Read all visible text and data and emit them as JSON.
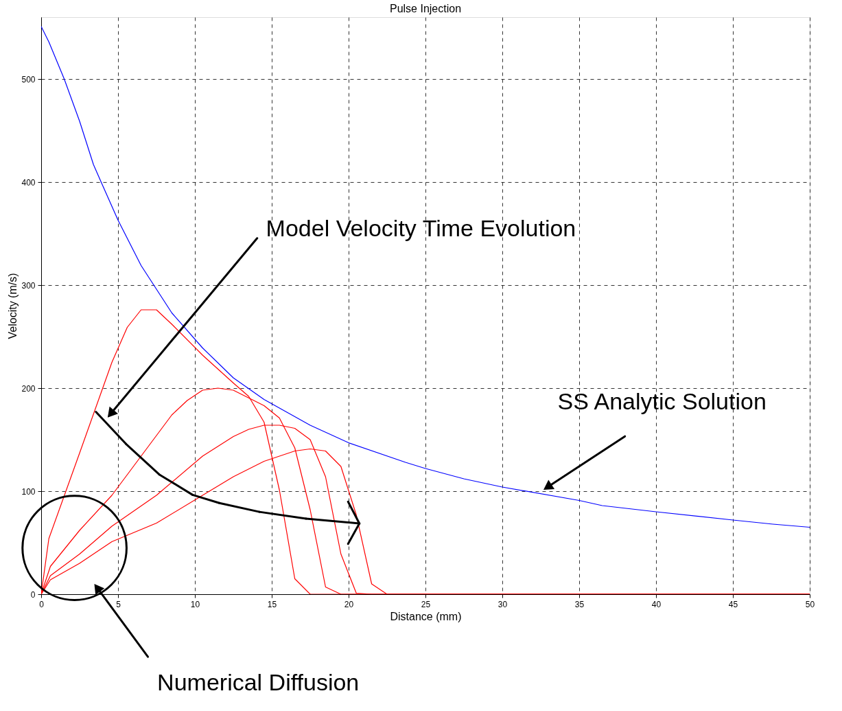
{
  "chart_data": {
    "type": "line",
    "title": "Pulse Injection",
    "xlabel": "Distance (mm)",
    "ylabel": "Velocity (m/s)",
    "xlim": [
      0,
      50
    ],
    "xticks": [
      0,
      5,
      10,
      15,
      20,
      25,
      30,
      35,
      40,
      45,
      50
    ],
    "ylim": [
      0,
      560
    ],
    "yticks": [
      0,
      100,
      200,
      300,
      400,
      500
    ],
    "grid": true,
    "series": [
      {
        "color": "#ff0000",
        "x": [
          0,
          0.5,
          2.5,
          4.6,
          5.6,
          6.5,
          7.5,
          8.5,
          10.5,
          12.5,
          13.5,
          14.5,
          15.5,
          16.5,
          17.5,
          50
        ],
        "values": [
          0,
          54,
          137,
          225,
          259,
          276,
          276,
          262,
          232,
          205,
          192,
          167,
          101,
          15,
          0,
          0
        ]
      },
      {
        "color": "#ff0000",
        "x": [
          0,
          0.6,
          2.5,
          4.6,
          6.5,
          8.5,
          9.5,
          10.5,
          11.5,
          12.5,
          14.5,
          15.5,
          16.5,
          17.5,
          18.5,
          19.5,
          50
        ],
        "values": [
          0,
          27,
          62,
          96,
          134,
          174,
          188,
          198,
          200,
          198,
          183,
          171,
          142,
          82,
          7,
          0,
          0
        ]
      },
      {
        "color": "#ff0000",
        "x": [
          0,
          0.6,
          2.5,
          4.6,
          7.5,
          10.5,
          12.5,
          13.5,
          14.5,
          15.5,
          16.5,
          17.5,
          18.5,
          19.5,
          20.5,
          21.5,
          50
        ],
        "values": [
          0,
          18,
          39,
          66,
          96,
          134,
          153,
          160,
          164,
          164,
          161,
          150,
          114,
          39,
          1,
          0,
          0
        ]
      },
      {
        "color": "#ff0000",
        "x": [
          0,
          0.6,
          2.5,
          4.6,
          7.5,
          10.5,
          12.5,
          14.5,
          16.5,
          17.5,
          18.5,
          19.5,
          20.5,
          21.5,
          22.5,
          50
        ],
        "values": [
          0,
          14,
          30,
          51,
          69,
          96,
          114,
          129,
          139,
          141,
          139,
          124,
          77,
          10,
          0,
          0
        ]
      },
      {
        "color": "#0000ff",
        "x": [
          0,
          0.5,
          1.5,
          2.5,
          3.4,
          3.9,
          5,
          6.5,
          7.5,
          8.5,
          10.5,
          12.5,
          14.5,
          17.5,
          20,
          23.7,
          25,
          27.5,
          30,
          35,
          36.5,
          40,
          45,
          47.6,
          50
        ],
        "values": [
          551,
          536,
          500,
          459,
          417,
          400,
          363,
          319,
          296,
          273,
          239,
          210,
          189,
          164,
          147,
          128,
          122,
          112,
          104,
          91,
          86,
          80,
          72,
          68,
          65
        ]
      }
    ],
    "annotations": [
      "Model Velocity Time Evolution",
      "SS Analytic Solution",
      "Numerical Diffusion"
    ]
  }
}
